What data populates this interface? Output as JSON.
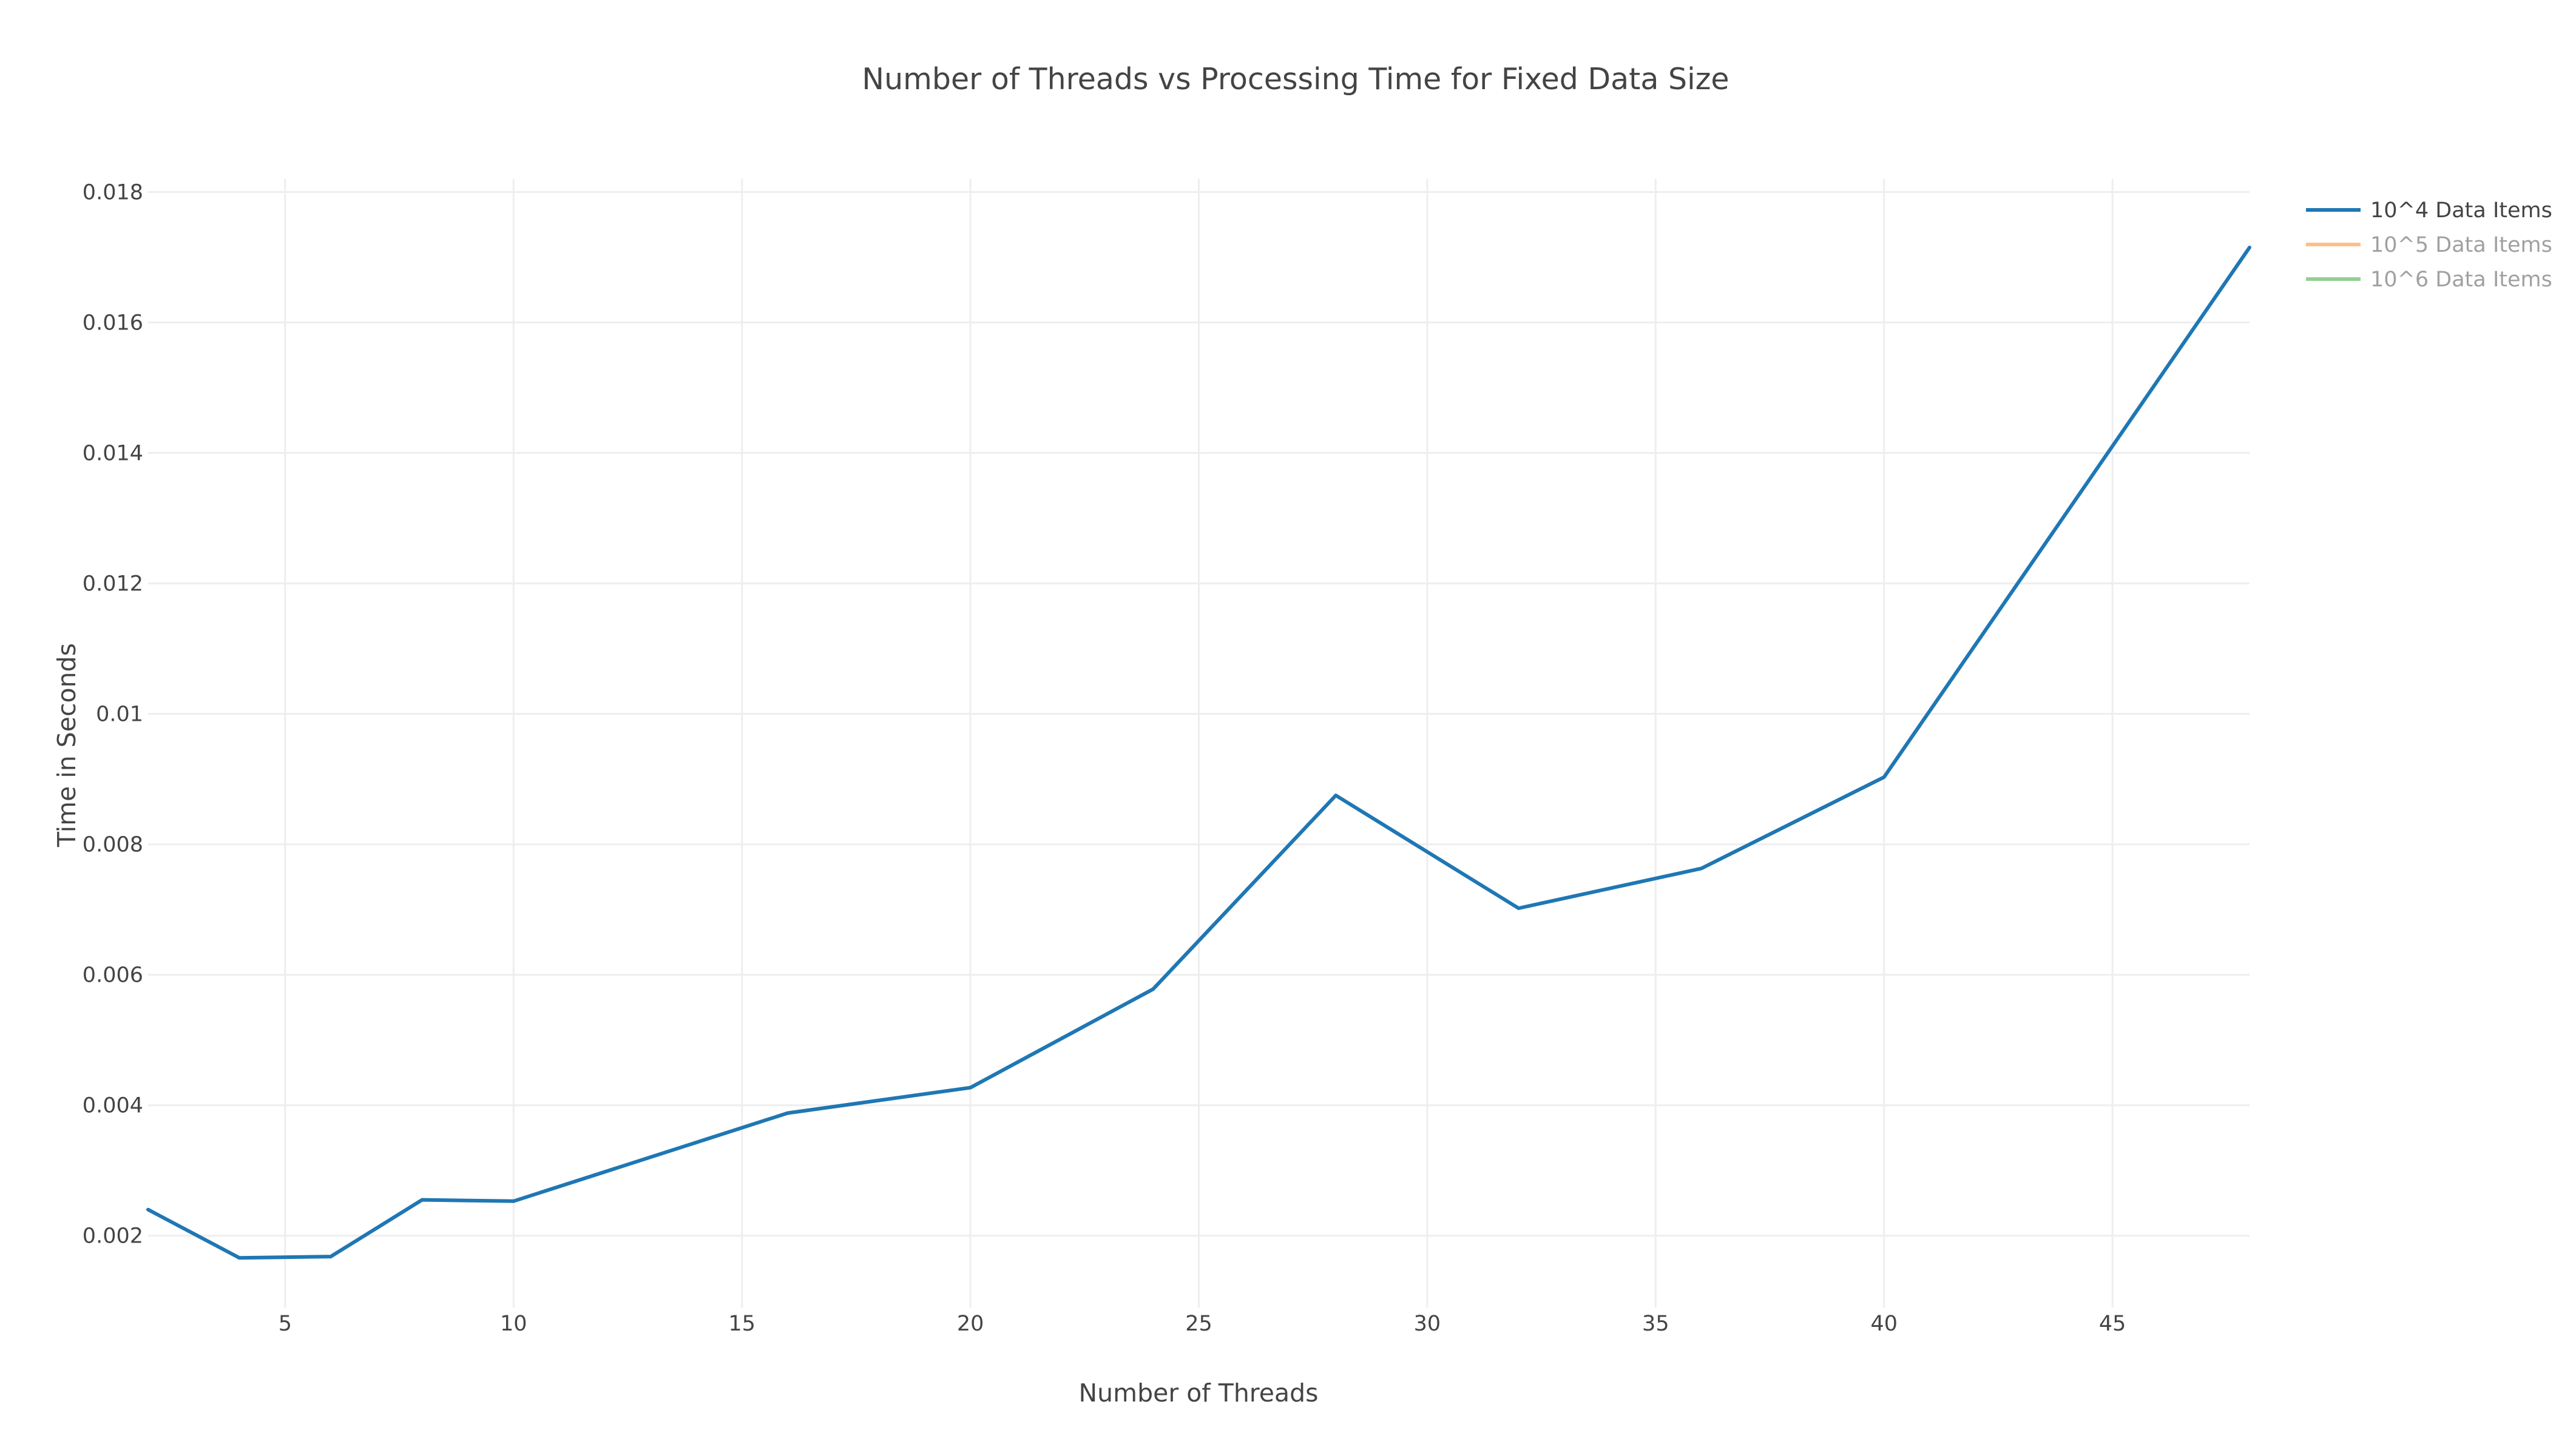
{
  "chart_data": {
    "type": "line",
    "title": "Number of Threads vs Processing Time for Fixed Data Size",
    "xlabel": "Number of Threads",
    "ylabel": "Time in Seconds",
    "xlim": [
      2,
      48
    ],
    "ylim": [
      0.0009,
      0.0182
    ],
    "xticks": [
      5,
      10,
      15,
      20,
      25,
      30,
      35,
      40,
      45
    ],
    "yticks": [
      0.002,
      0.004,
      0.006,
      0.008,
      0.01,
      0.012,
      0.014,
      0.016,
      0.018
    ],
    "grid": true,
    "legend_position": "top-right",
    "series": [
      {
        "name": "10^4 Data Items",
        "color": "#1f77b4",
        "visible": true,
        "x": [
          2,
          4,
          6,
          8,
          10,
          16,
          20,
          24,
          28,
          32,
          36,
          40,
          48
        ],
        "y": [
          0.0024,
          0.00166,
          0.00168,
          0.00255,
          0.00253,
          0.00388,
          0.00427,
          0.00578,
          0.00875,
          0.00702,
          0.00763,
          0.00903,
          0.01715
        ]
      },
      {
        "name": "10^5 Data Items",
        "color": "#ff7f0e",
        "visible": false,
        "x": [],
        "y": []
      },
      {
        "name": "10^6 Data Items",
        "color": "#2ca02c",
        "visible": false,
        "x": [],
        "y": []
      }
    ]
  }
}
